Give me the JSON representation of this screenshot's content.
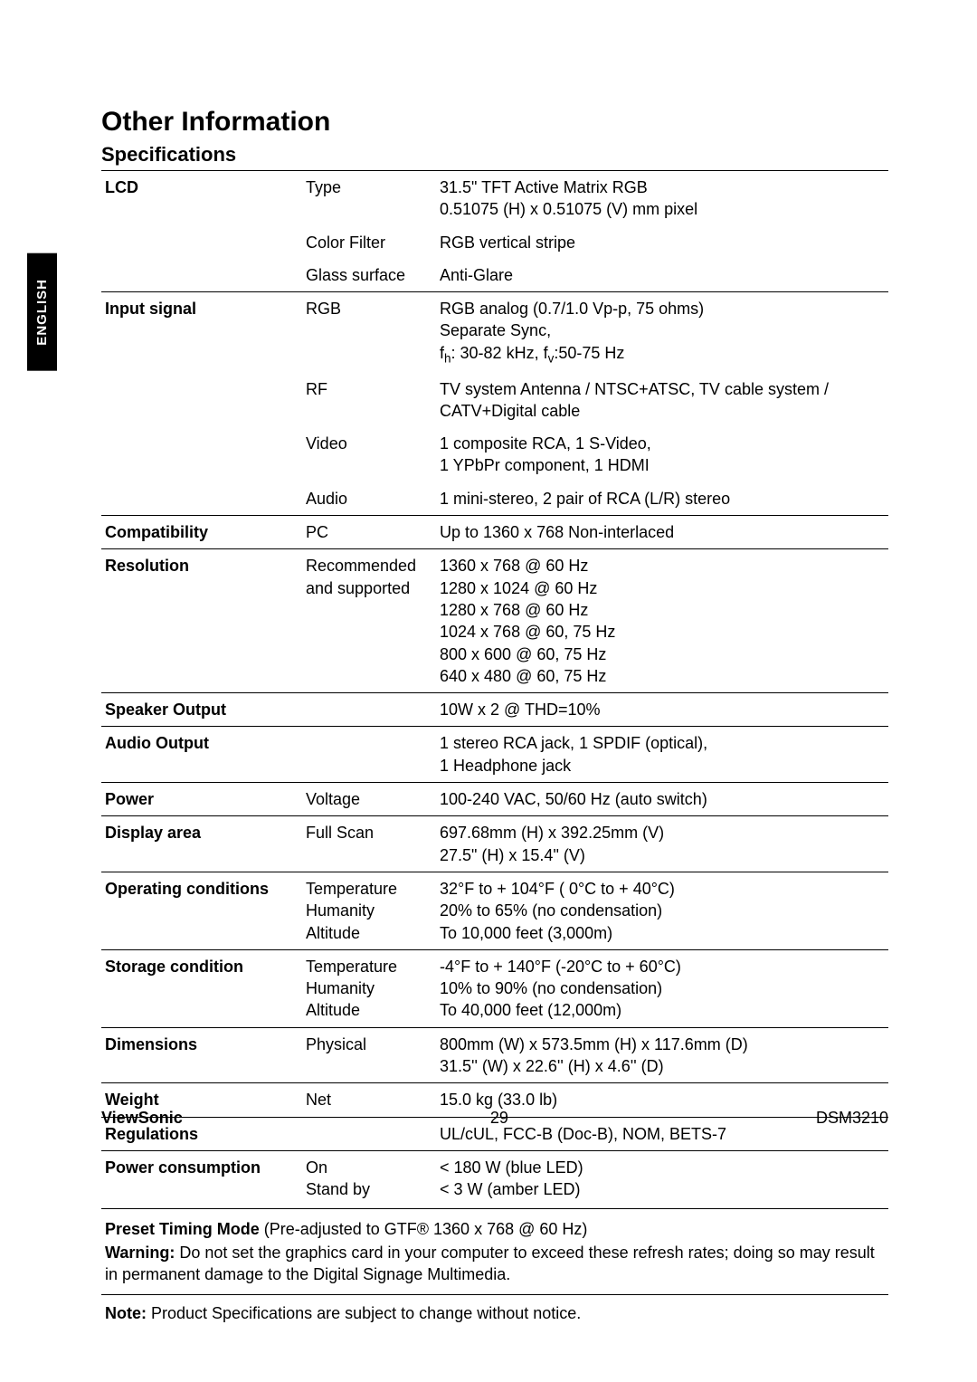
{
  "side_tab": "ENGLISH",
  "h1": "Other Information",
  "h2": "Specifications",
  "rows": [
    {
      "sep": true,
      "label": "LCD",
      "mid": "Type",
      "val": "31.5\" TFT Active Matrix RGB\n0.51075 (H) x 0.51075 (V) mm pixel"
    },
    {
      "sep": false,
      "label": "",
      "mid": "Color Filter",
      "val": "RGB vertical stripe"
    },
    {
      "sep": false,
      "label": "",
      "mid": "Glass surface",
      "val": "Anti-Glare"
    },
    {
      "sep": true,
      "label": "Input signal",
      "mid": "RGB",
      "val": "RGB analog (0.7/1.0 Vp-p, 75 ohms)\nSeparate Sync,\nf__h__: 30-82 kHz, f__v__:50-75 Hz"
    },
    {
      "sep": false,
      "label": "",
      "mid": "RF",
      "val": "TV system Antenna / NTSC+ATSC, TV cable system / CATV+Digital cable"
    },
    {
      "sep": false,
      "label": "",
      "mid": "Video",
      "val": "1 composite RCA, 1 S-Video,\n1 YPbPr component, 1 HDMI"
    },
    {
      "sep": false,
      "label": "",
      "mid": "Audio",
      "val": "1 mini-stereo, 2 pair of RCA (L/R) stereo"
    },
    {
      "sep": true,
      "label": "Compatibility",
      "mid": "PC",
      "val": "Up to 1360 x 768 Non-interlaced"
    },
    {
      "sep": true,
      "label": "Resolution",
      "mid": "Recommended and supported",
      "val": "1360 x 768 @ 60 Hz\n1280 x 1024 @ 60 Hz\n1280 x 768 @ 60 Hz\n1024 x 768 @ 60, 75 Hz\n800 x 600 @ 60, 75 Hz\n640 x 480 @ 60, 75 Hz"
    },
    {
      "sep": true,
      "label": "Speaker Output",
      "mid": "",
      "val": "10W x 2 @ THD=10%"
    },
    {
      "sep": true,
      "label": "Audio Output",
      "mid": "",
      "val": "1 stereo RCA jack, 1 SPDIF (optical),\n1 Headphone jack"
    },
    {
      "sep": true,
      "label": "Power",
      "mid": "Voltage",
      "val": "100-240 VAC, 50/60 Hz (auto switch)"
    },
    {
      "sep": true,
      "label": "Display area",
      "mid": "Full Scan",
      "val": "697.68mm (H) x 392.25mm (V)\n27.5\" (H) x 15.4\" (V)"
    },
    {
      "sep": true,
      "label": "Operating conditions",
      "mid": "Temperature\nHumanity\nAltitude",
      "val": "32°F to + 104°F ( 0°C to + 40°C)\n20% to 65% (no condensation)\nTo 10,000 feet (3,000m)"
    },
    {
      "sep": true,
      "label": "Storage condition",
      "mid": "Temperature\nHumanity\nAltitude",
      "val": "-4°F to + 140°F (-20°C to + 60°C)\n10% to 90% (no condensation)\nTo 40,000 feet (12,000m)"
    },
    {
      "sep": true,
      "label": "Dimensions",
      "mid": "Physical",
      "val": "800mm (W) x 573.5mm (H) x 117.6mm (D)\n31.5'' (W) x 22.6'' (H) x 4.6'' (D)"
    },
    {
      "sep": true,
      "label": "Weight",
      "mid": "Net",
      "val": "15.0 kg (33.0 lb)"
    },
    {
      "sep": true,
      "label": "Regulations",
      "mid": "",
      "val": "UL/cUL, FCC-B (Doc-B), NOM, BETS-7"
    },
    {
      "sep": true,
      "label": "Power consumption",
      "mid": "On\nStand by",
      "val": "< 180 W (blue LED)\n< 3 W (amber LED)"
    }
  ],
  "notes": {
    "bold1": "Preset Timing Mode ",
    "line1": "(Pre-adjusted to GTF® 1360 x 768 @ 60 Hz)",
    "bold2": "Warning: ",
    "line2": "Do not set the graphics card in your computer to exceed these refresh rates; doing so may result in permanent damage to the Digital Signage Multimedia."
  },
  "footnote_bold": "Note: ",
  "footnote_text": "Product Specifications are subject to change without notice.",
  "brand": "ViewSonic",
  "page_num": "29",
  "model": "DSM3210"
}
